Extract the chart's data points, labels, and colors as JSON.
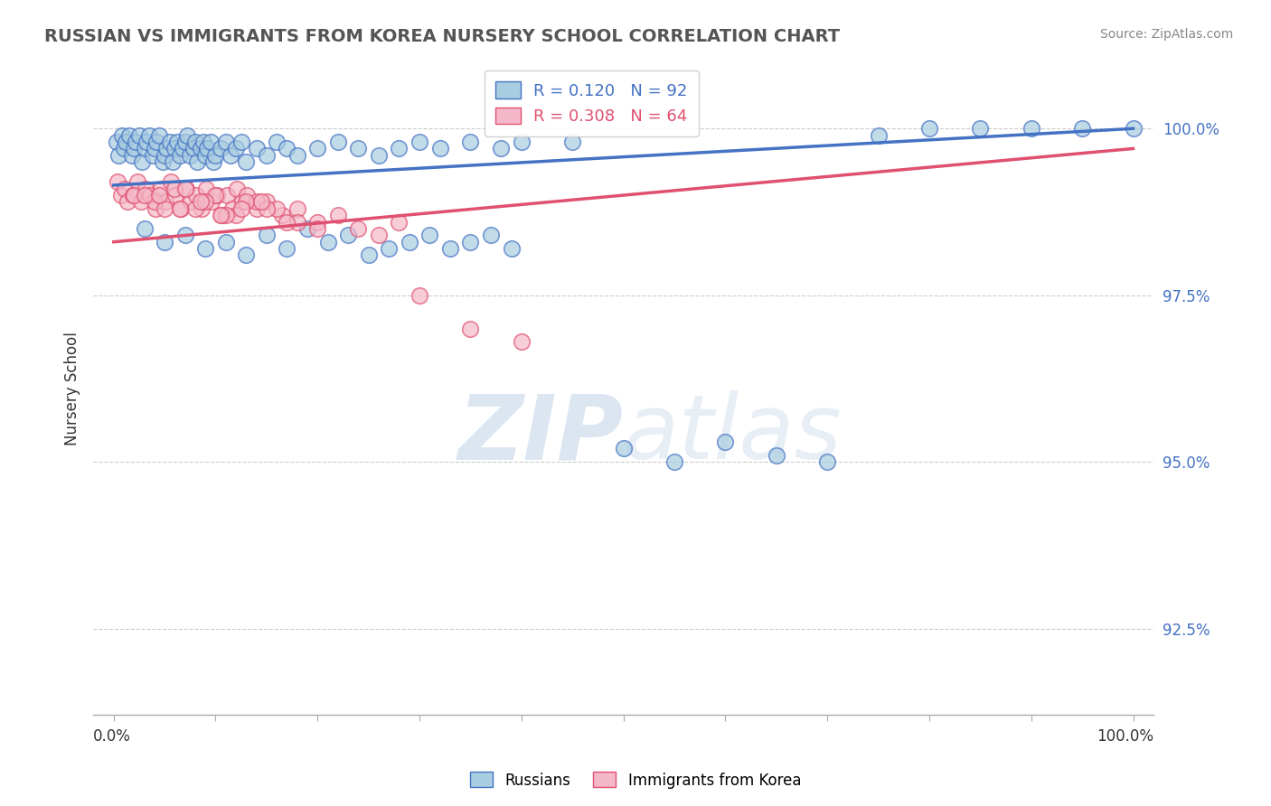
{
  "title": "RUSSIAN VS IMMIGRANTS FROM KOREA NURSERY SCHOOL CORRELATION CHART",
  "source": "Source: ZipAtlas.com",
  "ylabel": "Nursery School",
  "legend_russians": "Russians",
  "legend_immigrants": "Immigrants from Korea",
  "r_russians": 0.12,
  "n_russians": 92,
  "r_immigrants": 0.308,
  "n_immigrants": 64,
  "color_russians": "#a8cce0",
  "color_immigrants": "#f4b8c8",
  "color_russians_line": "#4472c4",
  "color_immigrants_line": "#e05070",
  "xlim": [
    0.0,
    100.0
  ],
  "ylim": [
    91.5,
    100.8
  ],
  "yticks": [
    92.5,
    95.0,
    97.5,
    100.0
  ],
  "yticklabels": [
    "92.5%",
    "95.0%",
    "97.5%",
    "100.0%"
  ],
  "watermark": "ZIPatlas",
  "background_color": "#ffffff",
  "rus_trend_x0": 0,
  "rus_trend_y0": 99.15,
  "rus_trend_x1": 100,
  "rus_trend_y1": 100.0,
  "imm_trend_x0": 0,
  "imm_trend_y0": 98.3,
  "imm_trend_x1": 100,
  "imm_trend_y1": 99.7,
  "russians_x": [
    0.3,
    0.5,
    0.8,
    1.0,
    1.2,
    1.5,
    1.8,
    2.0,
    2.2,
    2.5,
    2.8,
    3.0,
    3.2,
    3.5,
    3.8,
    4.0,
    4.2,
    4.5,
    4.8,
    5.0,
    5.2,
    5.5,
    5.8,
    6.0,
    6.2,
    6.5,
    6.8,
    7.0,
    7.2,
    7.5,
    7.8,
    8.0,
    8.2,
    8.5,
    8.8,
    9.0,
    9.2,
    9.5,
    9.8,
    10.0,
    10.5,
    11.0,
    11.5,
    12.0,
    12.5,
    13.0,
    14.0,
    15.0,
    16.0,
    17.0,
    18.0,
    20.0,
    22.0,
    24.0,
    26.0,
    28.0,
    30.0,
    32.0,
    35.0,
    38.0,
    40.0,
    45.0,
    50.0,
    55.0,
    60.0,
    65.0,
    70.0,
    75.0,
    80.0,
    85.0,
    90.0,
    95.0,
    100.0,
    3.0,
    5.0,
    7.0,
    9.0,
    11.0,
    13.0,
    15.0,
    17.0,
    19.0,
    21.0,
    23.0,
    25.0,
    27.0,
    29.0,
    31.0,
    33.0,
    35.0,
    37.0,
    39.0
  ],
  "russians_y": [
    99.8,
    99.6,
    99.9,
    99.7,
    99.8,
    99.9,
    99.6,
    99.7,
    99.8,
    99.9,
    99.5,
    99.7,
    99.8,
    99.9,
    99.6,
    99.7,
    99.8,
    99.9,
    99.5,
    99.6,
    99.7,
    99.8,
    99.5,
    99.7,
    99.8,
    99.6,
    99.7,
    99.8,
    99.9,
    99.6,
    99.7,
    99.8,
    99.5,
    99.7,
    99.8,
    99.6,
    99.7,
    99.8,
    99.5,
    99.6,
    99.7,
    99.8,
    99.6,
    99.7,
    99.8,
    99.5,
    99.7,
    99.6,
    99.8,
    99.7,
    99.6,
    99.7,
    99.8,
    99.7,
    99.6,
    99.7,
    99.8,
    99.7,
    99.8,
    99.7,
    99.8,
    99.8,
    95.2,
    95.0,
    95.3,
    95.1,
    95.0,
    99.9,
    100.0,
    100.0,
    100.0,
    100.0,
    100.0,
    98.5,
    98.3,
    98.4,
    98.2,
    98.3,
    98.1,
    98.4,
    98.2,
    98.5,
    98.3,
    98.4,
    98.1,
    98.2,
    98.3,
    98.4,
    98.2,
    98.3,
    98.4,
    98.2
  ],
  "immigrants_x": [
    0.4,
    0.7,
    1.1,
    1.4,
    1.9,
    2.3,
    2.7,
    3.1,
    3.6,
    4.1,
    4.6,
    5.1,
    5.6,
    6.1,
    6.6,
    7.1,
    7.6,
    8.1,
    8.6,
    9.1,
    9.6,
    10.1,
    10.6,
    11.1,
    11.6,
    12.1,
    12.6,
    13.1,
    14.0,
    15.0,
    16.5,
    18.0,
    20.0,
    22.0,
    24.0,
    26.0,
    28.0,
    30.0,
    35.0,
    40.0,
    2.0,
    4.0,
    6.0,
    8.0,
    10.0,
    12.0,
    14.0,
    16.0,
    18.0,
    20.0,
    3.0,
    5.0,
    7.0,
    9.0,
    11.0,
    13.0,
    15.0,
    17.0,
    4.5,
    6.5,
    8.5,
    10.5,
    12.5,
    14.5
  ],
  "immigrants_y": [
    99.2,
    99.0,
    99.1,
    98.9,
    99.0,
    99.2,
    98.9,
    99.1,
    99.0,
    98.8,
    99.1,
    98.9,
    99.2,
    99.0,
    98.8,
    99.1,
    98.9,
    99.0,
    98.8,
    99.1,
    98.9,
    99.0,
    98.7,
    99.0,
    98.8,
    99.1,
    98.9,
    99.0,
    98.8,
    98.9,
    98.7,
    98.8,
    98.6,
    98.7,
    98.5,
    98.4,
    98.6,
    97.5,
    97.0,
    96.8,
    99.0,
    98.9,
    99.1,
    98.8,
    99.0,
    98.7,
    98.9,
    98.8,
    98.6,
    98.5,
    99.0,
    98.8,
    99.1,
    98.9,
    98.7,
    98.9,
    98.8,
    98.6,
    99.0,
    98.8,
    98.9,
    98.7,
    98.8,
    98.9
  ]
}
